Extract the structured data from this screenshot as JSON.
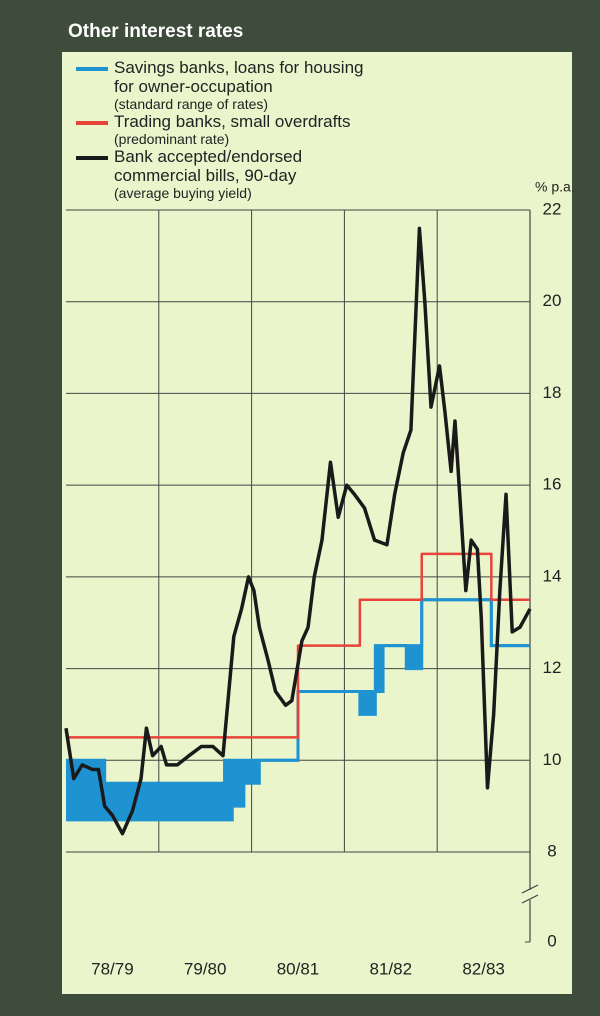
{
  "chart_data": {
    "type": "line",
    "title": "Other interest rates",
    "y_label": "% p.a.",
    "categories": [
      "78/79",
      "79/80",
      "80/81",
      "81/82",
      "82/83"
    ],
    "xlim": [
      0,
      60
    ],
    "ylim": [
      0,
      22
    ],
    "yticks": [
      0,
      8,
      10,
      12,
      14,
      16,
      18,
      20,
      22
    ],
    "axis_break": [
      0,
      8
    ],
    "grid": true,
    "series": [
      {
        "name": "Savings banks, loans for housing\nfor owner-occupation",
        "note": "(standard range of rates)",
        "color": "#1f93d2",
        "kind": "range",
        "x": [
          0,
          5,
          5,
          20.5,
          20.5,
          21.5,
          21.5,
          23,
          23,
          25,
          25,
          30,
          30,
          38,
          38,
          40,
          40,
          41,
          41,
          44,
          44,
          46,
          46,
          55,
          55,
          60
        ],
        "high": [
          10,
          10,
          9.5,
          9.5,
          10,
          10,
          10,
          10,
          10,
          10,
          10,
          10,
          11.5,
          11.5,
          11.5,
          11.5,
          12.5,
          12.5,
          12.5,
          12.5,
          12.5,
          12.5,
          13.5,
          13.5,
          12.5,
          12.5
        ],
        "low": [
          8.7,
          8.7,
          8.7,
          8.7,
          8.7,
          8.7,
          9.0,
          9.0,
          9.5,
          9.5,
          10,
          10,
          11.5,
          11.5,
          11.0,
          11.0,
          11.5,
          11.5,
          12.5,
          12.5,
          12.0,
          12.0,
          13.5,
          13.5,
          12.5,
          12.5
        ]
      },
      {
        "name": "Trading banks, small overdrafts",
        "note": "(predominant rate)",
        "color": "#e8433a",
        "kind": "line",
        "x": [
          0,
          30,
          30,
          38,
          38,
          46,
          46,
          55,
          55,
          60
        ],
        "values": [
          10.5,
          10.5,
          12.5,
          12.5,
          13.5,
          13.5,
          14.5,
          14.5,
          13.5,
          13.5
        ]
      },
      {
        "name": "Bank accepted/endorsed\ncommercial bills, 90-day",
        "note": "(average buying yield)",
        "color": "#1a1a1a",
        "kind": "line",
        "x": [
          0,
          1.0,
          2.1,
          3.4,
          4.2,
          5.0,
          6.0,
          7.3,
          8.6,
          9.7,
          10.4,
          11.2,
          12.3,
          13.0,
          14.4,
          15.9,
          17.5,
          19.0,
          20.3,
          21.7,
          22.7,
          23.6,
          24.3,
          25.0,
          26.1,
          27.1,
          28.4,
          29.2,
          30.5,
          31.3,
          32.1,
          33.1,
          34.2,
          35.2,
          36.3,
          37.3,
          38.6,
          39.9,
          41.5,
          42.5,
          43.6,
          44.6,
          45.7,
          46.4,
          47.2,
          48.3,
          49.0,
          49.8,
          50.3,
          51.1,
          51.7,
          52.4,
          53.2,
          53.7,
          54.5,
          55.3,
          56.1,
          56.9,
          57.7,
          58.7,
          60
        ],
        "values": [
          10.7,
          9.6,
          9.9,
          9.8,
          9.8,
          9.0,
          8.8,
          8.4,
          8.9,
          9.6,
          10.7,
          10.1,
          10.3,
          9.9,
          9.9,
          10.1,
          10.3,
          10.3,
          10.1,
          12.7,
          13.3,
          14.0,
          13.7,
          12.9,
          12.2,
          11.5,
          11.2,
          11.3,
          12.6,
          12.9,
          14.0,
          14.8,
          16.5,
          15.3,
          16.0,
          15.8,
          15.5,
          14.8,
          14.7,
          15.8,
          16.7,
          17.2,
          21.6,
          20.0,
          17.7,
          18.6,
          17.6,
          16.3,
          17.4,
          15.3,
          13.7,
          14.8,
          14.6,
          13.1,
          9.4,
          11.0,
          13.7,
          15.8,
          12.8,
          12.9,
          13.3
        ]
      }
    ]
  }
}
